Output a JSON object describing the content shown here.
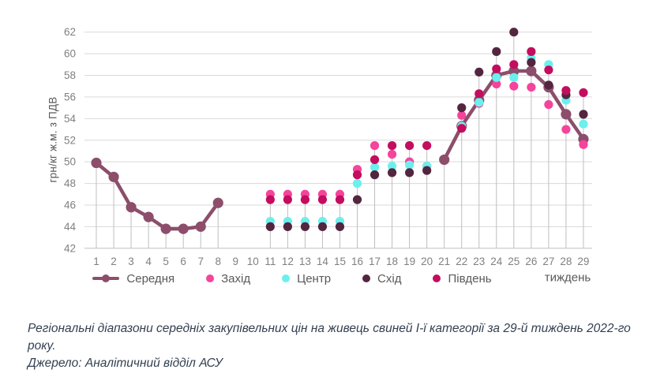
{
  "chart": {
    "y_axis_title": "грн/кг ж.м. з ПДВ",
    "x_axis_title": "тиждень",
    "colors": {
      "gridline": "#d9d9d9",
      "axis_line": "#bfbfbf",
      "drop_line": "#bfbfbf",
      "tick_label": "#808080"
    }
  },
  "chart_data": {
    "type": "line",
    "title": "",
    "xlabel": "тиждень",
    "ylabel": "грн/кг ж.м. з ПДВ",
    "x": [
      1,
      2,
      3,
      4,
      5,
      6,
      7,
      8,
      9,
      10,
      11,
      12,
      13,
      14,
      15,
      16,
      17,
      18,
      19,
      20,
      21,
      22,
      23,
      24,
      25,
      26,
      27,
      28,
      29
    ],
    "ylim": [
      42,
      62
    ],
    "y_ticks": [
      42,
      44,
      46,
      48,
      50,
      52,
      54,
      56,
      58,
      60,
      62
    ],
    "grid": true,
    "drop_lines": true,
    "legend_position": "bottom",
    "series": [
      {
        "name": "Середня",
        "key": "average",
        "style": "line-with-markers",
        "color": "#8C4E6B",
        "values": [
          49.9,
          48.6,
          45.8,
          44.9,
          43.8,
          43.8,
          44.0,
          46.2,
          null,
          null,
          null,
          null,
          null,
          null,
          null,
          null,
          null,
          null,
          null,
          null,
          50.2,
          53.3,
          55.7,
          58.0,
          58.4,
          58.4,
          56.9,
          54.4,
          52.1
        ]
      },
      {
        "name": "Захід",
        "key": "west",
        "style": "scatter",
        "color": "#F5449C",
        "values": [
          null,
          null,
          null,
          null,
          null,
          null,
          null,
          null,
          null,
          null,
          47.0,
          47.0,
          47.0,
          47.0,
          47.0,
          49.3,
          51.5,
          50.7,
          50.0,
          49.6,
          null,
          54.3,
          55.4,
          57.2,
          57.0,
          56.9,
          55.3,
          53.0,
          51.6
        ]
      },
      {
        "name": "Центр",
        "key": "center",
        "style": "scatter",
        "color": "#6BF0EE",
        "values": [
          null,
          null,
          null,
          null,
          null,
          null,
          null,
          null,
          null,
          null,
          44.5,
          44.5,
          44.5,
          44.5,
          44.5,
          48.0,
          49.5,
          49.6,
          49.7,
          49.6,
          null,
          53.3,
          55.5,
          57.8,
          57.8,
          59.6,
          59.0,
          55.7,
          53.5
        ]
      },
      {
        "name": "Схід",
        "key": "east",
        "style": "scatter",
        "color": "#532640",
        "values": [
          null,
          null,
          null,
          null,
          null,
          null,
          null,
          null,
          null,
          null,
          44.0,
          44.0,
          44.0,
          44.0,
          44.0,
          46.5,
          48.8,
          49.0,
          49.0,
          49.2,
          null,
          55.0,
          58.3,
          60.2,
          62.0,
          59.2,
          57.1,
          56.2,
          54.4
        ]
      },
      {
        "name": "Південь",
        "key": "south",
        "style": "scatter",
        "color": "#C30D5F",
        "values": [
          null,
          null,
          null,
          null,
          null,
          null,
          null,
          null,
          null,
          null,
          46.5,
          46.5,
          46.5,
          46.5,
          46.5,
          48.8,
          50.2,
          51.5,
          51.5,
          51.5,
          null,
          53.1,
          56.3,
          58.6,
          59.0,
          60.2,
          58.5,
          56.6,
          56.4
        ]
      }
    ]
  },
  "caption": {
    "text": "Регіональні діапазони середніх закупівельних цін на живець свиней І-ї категорії за 29-й тиждень 2022-го року.",
    "source": "Джерело: Аналітичний відділ АСУ"
  }
}
